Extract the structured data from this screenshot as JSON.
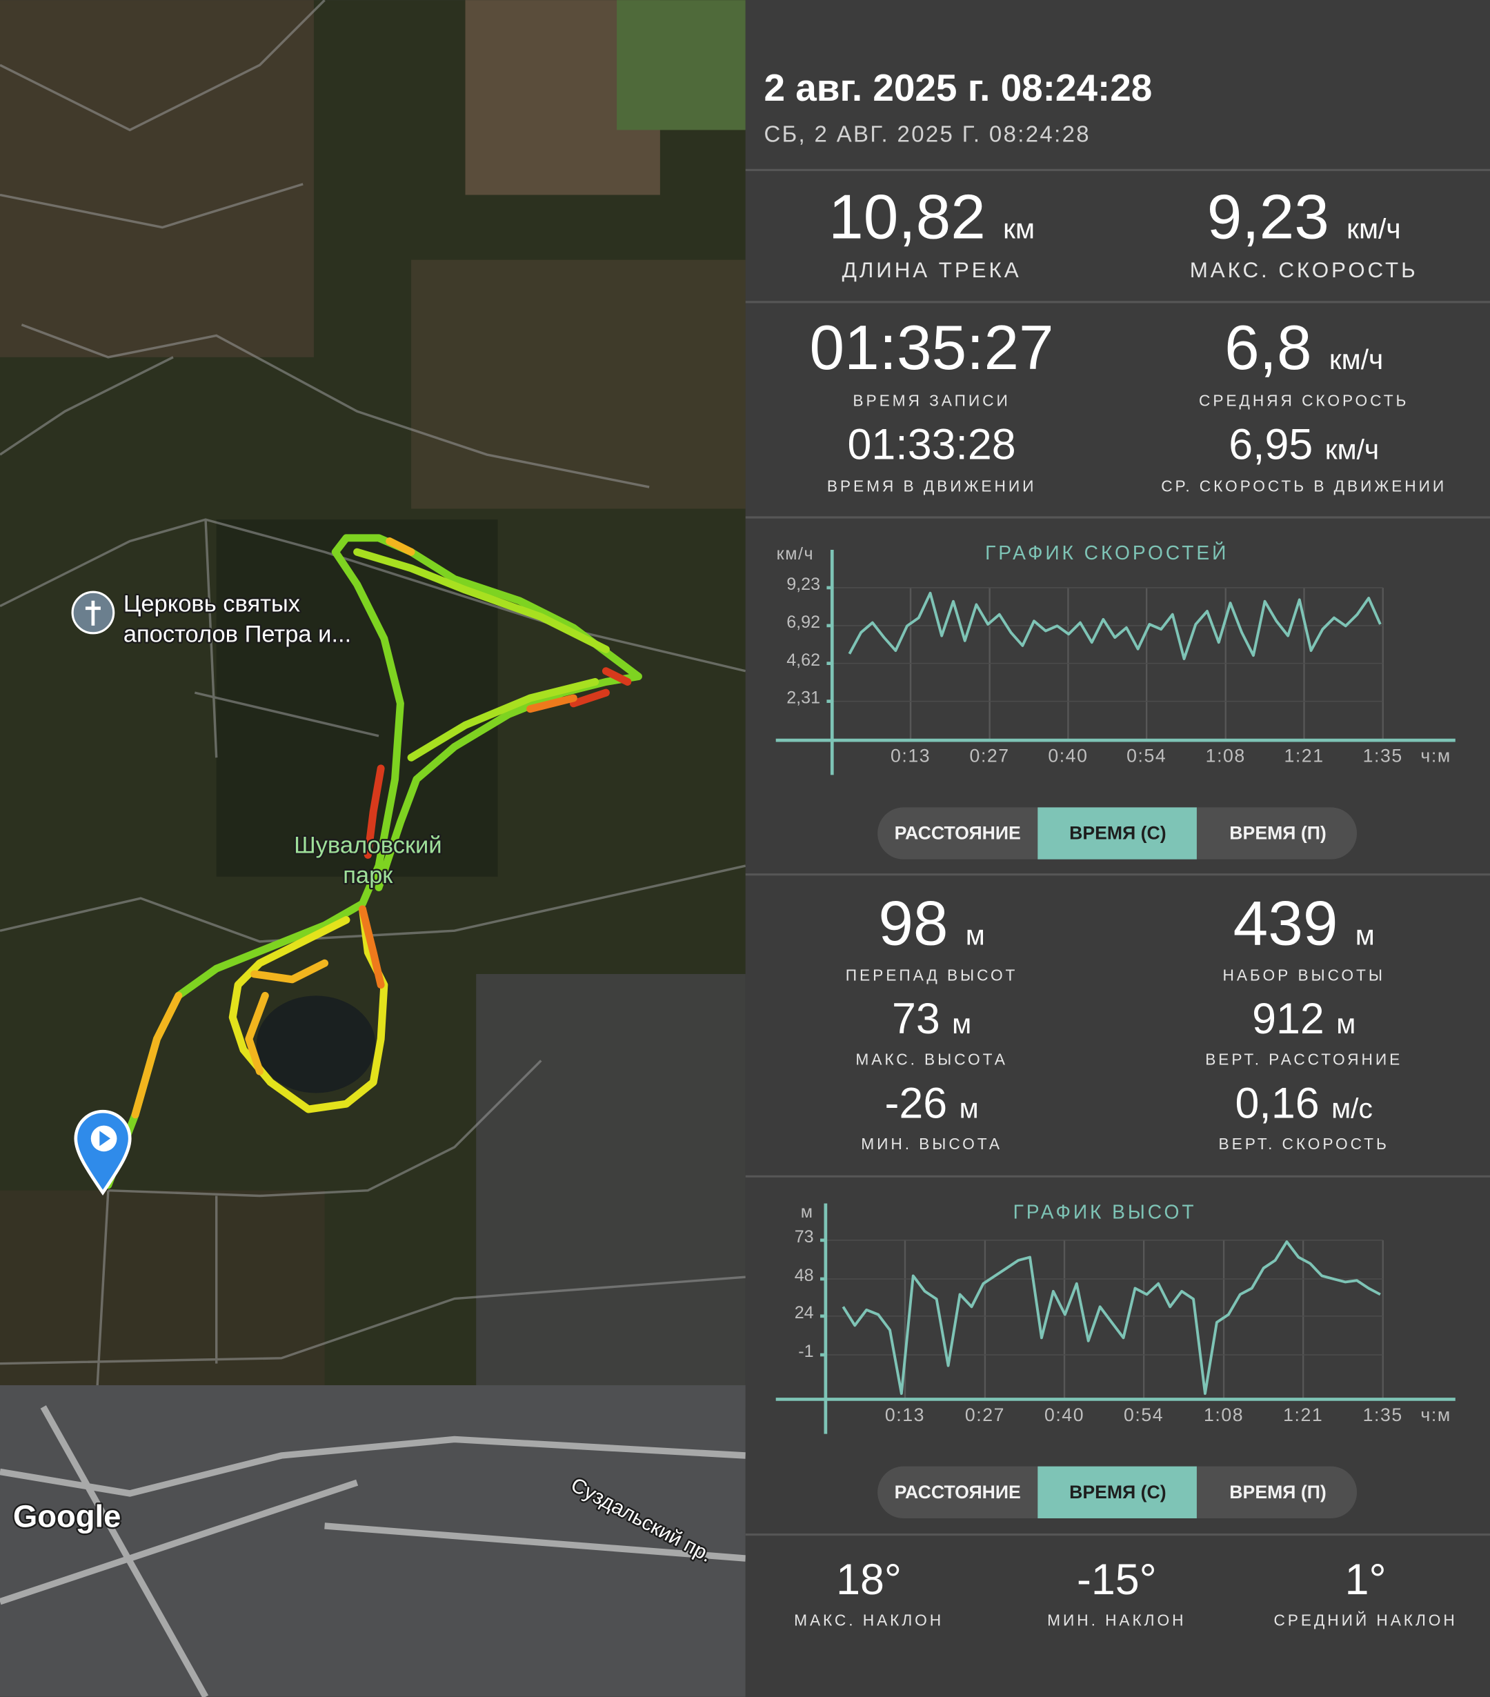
{
  "header": {
    "title": "2 авг. 2025 г. 08:24:28",
    "subtitle": "СБ, 2 АВГ. 2025 Г. 08:24:28"
  },
  "map": {
    "place_label": [
      "Церковь святых",
      "апостолов Петра и..."
    ],
    "park_label": [
      "Шуваловский",
      "парк"
    ],
    "street_label": "Суздальский пр.",
    "logo": "Google"
  },
  "stats": {
    "track_length": {
      "value": "10,82",
      "unit": "км",
      "label": "ДЛИНА ТРЕКА"
    },
    "max_speed": {
      "value": "9,23",
      "unit": "км/ч",
      "label": "МАКС. СКОРОСТЬ"
    },
    "record_time": {
      "value": "01:35:27",
      "label": "ВРЕМЯ ЗАПИСИ"
    },
    "avg_speed": {
      "value": "6,8",
      "unit": "км/ч",
      "label": "СРЕДНЯЯ СКОРОСТЬ"
    },
    "moving_time": {
      "value": "01:33:28",
      "label": "ВРЕМЯ В ДВИЖЕНИИ"
    },
    "moving_avg_speed": {
      "value": "6,95",
      "unit": "км/ч",
      "label": "СР. СКОРОСТЬ В ДВИЖЕНИИ"
    },
    "elevation_range": {
      "value": "98",
      "unit": "м",
      "label": "ПЕРЕПАД ВЫСОТ"
    },
    "elevation_gain": {
      "value": "439",
      "unit": "м",
      "label": "НАБОР ВЫСОТЫ"
    },
    "max_elevation": {
      "value": "73",
      "unit": "м",
      "label": "МАКС. ВЫСОТА"
    },
    "vertical_distance": {
      "value": "912",
      "unit": "м",
      "label": "ВЕРТ. РАССТОЯНИЕ"
    },
    "min_elevation": {
      "value": "-26",
      "unit": "м",
      "label": "МИН. ВЫСОТА"
    },
    "vertical_speed": {
      "value": "0,16",
      "unit": "м/с",
      "label": "ВЕРТ. СКОРОСТЬ"
    },
    "max_slope": {
      "value": "18°",
      "label": "МАКС. НАКЛОН"
    },
    "min_slope": {
      "value": "-15°",
      "label": "МИН. НАКЛОН"
    },
    "avg_slope": {
      "value": "1°",
      "label": "СРЕДНИЙ НАКЛОН"
    }
  },
  "speed_chart": {
    "type": "line",
    "title": "ГРАФИК СКОРОСТЕЙ",
    "y_unit": "км/ч",
    "x_unit": "ч:м",
    "color": "#7ec4b6",
    "xlim": [
      0,
      95.45
    ],
    "ylim": [
      0,
      9.23
    ],
    "yticks": [
      {
        "value": 9.23,
        "label": "9,23"
      },
      {
        "value": 6.92,
        "label": "6,92"
      },
      {
        "value": 4.62,
        "label": "4,62"
      },
      {
        "value": 2.31,
        "label": "2,31"
      }
    ],
    "xticks": [
      {
        "value": 13.6,
        "label": "0:13"
      },
      {
        "value": 27.3,
        "label": "0:27"
      },
      {
        "value": 40.9,
        "label": "0:40"
      },
      {
        "value": 54.5,
        "label": "0:54"
      },
      {
        "value": 68.2,
        "label": "1:08"
      },
      {
        "value": 81.8,
        "label": "1:21"
      },
      {
        "value": 95.45,
        "label": "1:35"
      }
    ],
    "x": [
      3,
      5,
      7,
      9,
      11,
      13,
      15,
      17,
      19,
      21,
      23,
      25,
      27,
      29,
      31,
      33,
      35,
      37,
      39,
      41,
      43,
      45,
      47,
      49,
      51,
      53,
      55,
      57,
      59,
      61,
      63,
      65,
      67,
      69,
      71,
      73,
      75,
      77,
      79,
      81,
      83,
      85,
      87,
      89,
      91,
      93,
      95
    ],
    "values": [
      5.2,
      6.5,
      7.1,
      6.2,
      5.4,
      6.9,
      7.4,
      8.9,
      6.3,
      8.4,
      6.0,
      8.2,
      7.0,
      7.6,
      6.5,
      5.7,
      7.2,
      6.6,
      6.9,
      6.4,
      7.1,
      5.9,
      7.3,
      6.2,
      6.8,
      5.5,
      7.0,
      6.7,
      7.6,
      4.9,
      7.0,
      7.8,
      5.9,
      8.3,
      6.5,
      5.1,
      8.4,
      7.2,
      6.3,
      8.5,
      5.4,
      6.7,
      7.4,
      6.9,
      7.6,
      8.6,
      7.0
    ],
    "tabs": [
      "РАССТОЯНИЕ",
      "ВРЕМЯ (С)",
      "ВРЕМЯ (П)"
    ],
    "active_tab": 1
  },
  "elevation_chart": {
    "type": "line",
    "title": "ГРАФИК ВЫСОТ",
    "y_unit": "м",
    "x_unit": "ч:м",
    "color": "#7ec4b6",
    "xlim": [
      0,
      95.45
    ],
    "ylim": [
      -29,
      73
    ],
    "yticks": [
      73,
      48,
      24,
      -1
    ],
    "xticks": [
      {
        "value": 13.6,
        "label": "0:13"
      },
      {
        "value": 27.3,
        "label": "0:27"
      },
      {
        "value": 40.9,
        "label": "0:40"
      },
      {
        "value": 54.5,
        "label": "0:54"
      },
      {
        "value": 68.2,
        "label": "1:08"
      },
      {
        "value": 81.8,
        "label": "1:21"
      },
      {
        "value": 95.45,
        "label": "1:35"
      }
    ],
    "x": [
      3,
      5,
      7,
      9,
      11,
      13,
      15,
      17,
      19,
      21,
      23,
      25,
      27,
      29,
      31,
      33,
      35,
      37,
      39,
      41,
      43,
      45,
      47,
      49,
      51,
      53,
      55,
      57,
      59,
      61,
      63,
      65,
      67,
      69,
      71,
      73,
      75,
      77,
      79,
      81,
      83,
      85,
      87,
      89,
      91,
      93,
      95
    ],
    "values": [
      30,
      18,
      28,
      25,
      15,
      -26,
      50,
      40,
      35,
      -8,
      38,
      30,
      45,
      50,
      55,
      60,
      62,
      10,
      40,
      25,
      45,
      8,
      30,
      20,
      10,
      42,
      38,
      45,
      30,
      40,
      35,
      -26,
      20,
      25,
      38,
      42,
      55,
      60,
      72,
      62,
      58,
      50,
      48,
      46,
      47,
      42,
      38
    ],
    "tabs": [
      "РАССТОЯНИЕ",
      "ВРЕМЯ (С)",
      "ВРЕМЯ (П)"
    ],
    "active_tab": 1
  }
}
